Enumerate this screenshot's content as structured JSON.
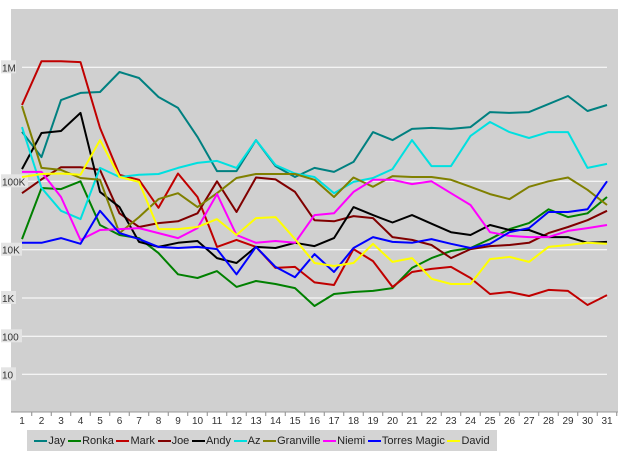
{
  "chart_data": {
    "type": "line",
    "title": "",
    "xlabel": "",
    "ylabel": "",
    "yscale": "log",
    "y_ticks": [
      {
        "value": 1000000,
        "label": "1M"
      },
      {
        "value": 100000,
        "label": "100K"
      },
      {
        "value": 10000,
        "label": "10K"
      },
      {
        "value": 1000,
        "label": "1K"
      },
      {
        "value": 100,
        "label": "100"
      },
      {
        "value": 10,
        "label": "10"
      }
    ],
    "x": [
      "1",
      "2",
      "3",
      "4",
      "5",
      "6",
      "7",
      "8",
      "9",
      "10",
      "11",
      "12",
      "13",
      "14",
      "15",
      "16",
      "17",
      "18",
      "19",
      "20",
      "21",
      "22",
      "23",
      "24",
      "25",
      "26",
      "27",
      "28",
      "29",
      "30",
      "31"
    ],
    "grid": true,
    "legend_position": "bottom",
    "series": [
      {
        "name": "Jay",
        "color": "#008080",
        "values": [
          272000,
          163000,
          516000,
          596000,
          607000,
          910000,
          805000,
          549000,
          440000,
          245000,
          123000,
          123000,
          230000,
          136000,
          109000,
          131000,
          121000,
          148000,
          270000,
          230000,
          288000,
          294000,
          288000,
          299000,
          405000,
          398000,
          405000,
          476000,
          560000,
          414000,
          467000
        ]
      },
      {
        "name": "Ronka",
        "color": "#008000",
        "values": [
          14300,
          79800,
          77000,
          100000,
          23000,
          16400,
          14800,
          8500,
          3100,
          2600,
          3600,
          1700,
          2250,
          1950,
          1600,
          620,
          1210,
          1330,
          1400,
          1600,
          4200,
          6700,
          9400,
          10600,
          14300,
          20000,
          24500,
          39000,
          30000,
          34000,
          59000
        ]
      },
      {
        "name": "Mark",
        "color": "#c00000",
        "values": [
          467000,
          1130000,
          1130000,
          1110000,
          294000,
          114000,
          103000,
          41000,
          117000,
          59000,
          11000,
          13900,
          11000,
          4200,
          4400,
          2100,
          1860,
          10200,
          5800,
          1700,
          3450,
          4000,
          4400,
          2600,
          1210,
          1330,
          1100,
          1470,
          1400,
          656,
          1150
        ]
      },
      {
        "name": "Joe",
        "color": "#800000",
        "values": [
          67000,
          104000,
          133000,
          133000,
          126000,
          34000,
          21500,
          24500,
          26000,
          34000,
          100000,
          35600,
          108000,
          104000,
          70000,
          27000,
          26000,
          31000,
          29000,
          15300,
          13900,
          11700,
          6700,
          10200,
          11300,
          11700,
          12600,
          17500,
          21500,
          27000,
          37000
        ]
      },
      {
        "name": "Andy",
        "color": "#000000",
        "values": [
          128000,
          265000,
          276000,
          398000,
          70000,
          42000,
          13000,
          11000,
          12600,
          13400,
          6700,
          5300,
          11000,
          10600,
          12600,
          11300,
          14800,
          42000,
          32000,
          25000,
          32000,
          24000,
          18000,
          16400,
          23000,
          19400,
          19400,
          15300,
          15300,
          12600,
          13000
        ]
      },
      {
        "name": "Az",
        "color": "#00e0e0",
        "values": [
          299000,
          80000,
          37000,
          28000,
          131000,
          109000,
          114000,
          116000,
          131000,
          145000,
          151000,
          131000,
          230000,
          139000,
          117000,
          109000,
          67000,
          98000,
          107000,
          128000,
          230000,
          136000,
          136000,
          250000,
          331000,
          270000,
          240000,
          270000,
          270000,
          131000,
          142000
        ]
      },
      {
        "name": "Granville",
        "color": "#808000",
        "values": [
          457000,
          131000,
          126000,
          107000,
          103000,
          17500,
          30000,
          55000,
          67000,
          42000,
          67000,
          107000,
          116000,
          116000,
          116000,
          103000,
          59000,
          108000,
          83000,
          111000,
          109000,
          109000,
          103000,
          83000,
          65000,
          55000,
          83000,
          100000,
          108000,
          75000,
          45000
        ]
      },
      {
        "name": "Niemi",
        "color": "#ff00ff",
        "values": [
          121000,
          121000,
          59000,
          13900,
          19400,
          20000,
          20700,
          17500,
          14800,
          20700,
          65000,
          16400,
          12600,
          13400,
          12600,
          32000,
          34000,
          70000,
          103000,
          103000,
          91000,
          100000,
          67000,
          45000,
          18000,
          15900,
          15300,
          15300,
          18800,
          20700,
          23000
        ]
      },
      {
        "name": "Torres Magic",
        "color": "#0000ff",
        "values": [
          12600,
          12600,
          14800,
          12200,
          37000,
          17500,
          14300,
          11000,
          10600,
          11000,
          10200,
          3100,
          11000,
          4400,
          2700,
          8100,
          3450,
          10600,
          15300,
          13000,
          12600,
          14300,
          12200,
          10600,
          12200,
          18000,
          20700,
          35600,
          35600,
          39000,
          100000
        ]
      },
      {
        "name": "David",
        "color": "#ffff00",
        "values": [
          109000,
          116000,
          117000,
          114000,
          230000,
          109000,
          98000,
          20000,
          20000,
          21500,
          28000,
          16400,
          29000,
          30000,
          14300,
          5300,
          4600,
          5300,
          12200,
          5600,
          6700,
          2500,
          1950,
          1950,
          6400,
          7100,
          5600,
          11000,
          11700,
          12600,
          12200
        ]
      }
    ]
  }
}
